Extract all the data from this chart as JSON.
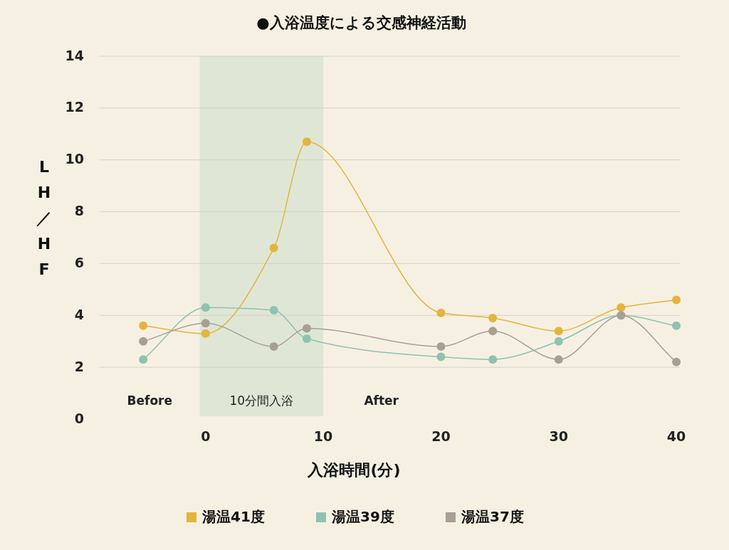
{
  "chart_data": {
    "type": "line",
    "title": "●入浴温度による交感神経活動",
    "xlabel": "入浴時間(分)",
    "ylabel": "LH／HF",
    "xlim": [
      -9,
      40.3
    ],
    "xticks": [
      0,
      10,
      20,
      30,
      40
    ],
    "ylim": [
      0,
      14
    ],
    "yticks": [
      0,
      2,
      4,
      6,
      8,
      10,
      12,
      14
    ],
    "grid": "y",
    "legend": "bottom",
    "marker": "circle",
    "line_style": "solid",
    "bands": [
      {
        "axis": "x",
        "from": -0.5,
        "to": 10,
        "label": "10分間入浴",
        "color": "#dfe6d6"
      }
    ],
    "annotations": [
      "Before",
      "After"
    ],
    "series": [
      {
        "name": "湯温41度",
        "color": "#e3b53c",
        "x": [
          -5.3,
          0,
          5.8,
          8.6,
          20,
          24.4,
          30,
          35.3,
          40
        ],
        "values": [
          3.6,
          3.3,
          6.6,
          10.7,
          4.1,
          3.9,
          3.4,
          4.3,
          4.6
        ]
      },
      {
        "name": "湯温39度",
        "color": "#8fc2b0",
        "x": [
          -5.3,
          0,
          5.8,
          8.6,
          20,
          24.4,
          30,
          35.3,
          40
        ],
        "values": [
          2.3,
          4.3,
          4.2,
          3.1,
          2.4,
          2.3,
          3.0,
          4.0,
          3.6
        ]
      },
      {
        "name": "湯温37度",
        "color": "#a79f96",
        "x": [
          -5.3,
          0,
          5.8,
          8.6,
          20,
          24.4,
          30,
          35.3,
          40
        ],
        "values": [
          3.0,
          3.7,
          2.8,
          3.5,
          2.8,
          3.4,
          2.3,
          4.0,
          2.2
        ]
      }
    ]
  }
}
